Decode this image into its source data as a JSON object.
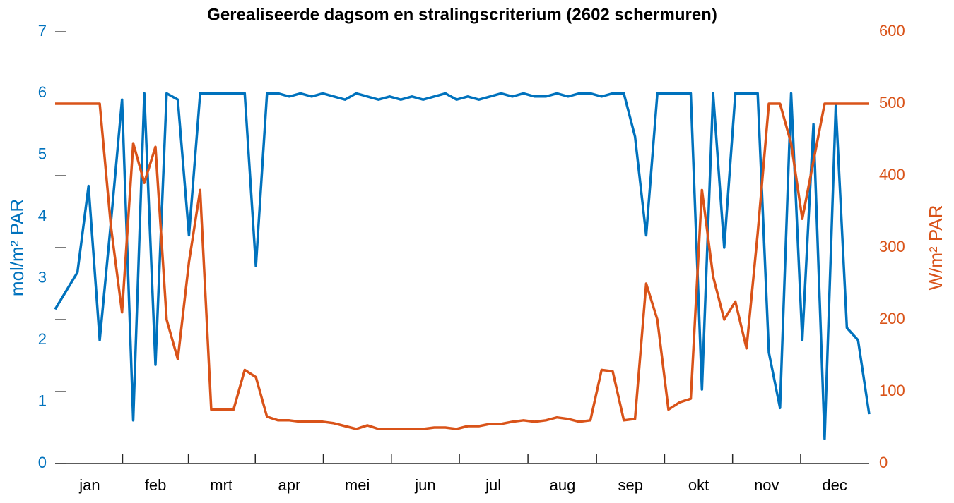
{
  "chart_data": {
    "type": "line",
    "title": "Gerealiseerde dagsom en stralingscriterium (2602 schermuren)",
    "ylabel": "mol/m² PAR",
    "y2label": "W/m² PAR",
    "xlim": [
      0,
      365
    ],
    "xticks": [
      {
        "value": 15.5,
        "label": "jan"
      },
      {
        "value": 45,
        "label": "feb"
      },
      {
        "value": 74.5,
        "label": "mrt"
      },
      {
        "value": 105,
        "label": "apr"
      },
      {
        "value": 135.5,
        "label": "mei"
      },
      {
        "value": 166,
        "label": "jun"
      },
      {
        "value": 196.5,
        "label": "jul"
      },
      {
        "value": 227.5,
        "label": "aug"
      },
      {
        "value": 258,
        "label": "sep"
      },
      {
        "value": 288.5,
        "label": "okt"
      },
      {
        "value": 319,
        "label": "nov"
      },
      {
        "value": 349.5,
        "label": "dec"
      }
    ],
    "ylim": [
      0,
      7
    ],
    "yticks": [
      0,
      1,
      2,
      3,
      4,
      5,
      6,
      7
    ],
    "y2lim": [
      0,
      600
    ],
    "y2ticks": [
      0,
      100,
      200,
      300,
      400,
      500,
      600
    ],
    "x": [
      0,
      5,
      10,
      15,
      20,
      25,
      30,
      35,
      40,
      45,
      50,
      55,
      60,
      65,
      70,
      75,
      80,
      85,
      90,
      95,
      100,
      105,
      110,
      115,
      120,
      125,
      130,
      135,
      140,
      145,
      150,
      155,
      160,
      165,
      170,
      175,
      180,
      185,
      190,
      195,
      200,
      205,
      210,
      215,
      220,
      225,
      230,
      235,
      240,
      245,
      250,
      255,
      260,
      265,
      270,
      275,
      280,
      285,
      290,
      295,
      300,
      305,
      310,
      315,
      320,
      325,
      330,
      335,
      340,
      345,
      350,
      355,
      360,
      365
    ],
    "series": [
      {
        "name": "mol/m² PAR",
        "color": "#0072BD",
        "values": [
          2.5,
          2.8,
          3.1,
          4.5,
          2.0,
          3.9,
          5.9,
          0.7,
          6.0,
          1.6,
          6.0,
          5.9,
          3.7,
          6.0,
          6.0,
          6.0,
          6.0,
          6.0,
          3.2,
          6.0,
          6.0,
          5.95,
          6.0,
          5.95,
          6.0,
          5.95,
          5.9,
          6.0,
          5.95,
          5.9,
          5.95,
          5.9,
          5.95,
          5.9,
          5.95,
          6.0,
          5.9,
          5.95,
          5.9,
          5.95,
          6.0,
          5.95,
          6.0,
          5.95,
          5.95,
          6.0,
          5.95,
          6.0,
          6.0,
          5.95,
          6.0,
          6.0,
          5.3,
          3.7,
          6.0,
          6.0,
          6.0,
          6.0,
          1.2,
          6.0,
          3.5,
          6.0,
          6.0,
          6.0,
          1.8,
          0.9,
          6.0,
          2.0,
          5.5,
          0.4,
          5.8,
          2.2,
          2.0,
          0.8
        ]
      },
      {
        "name": "W/m² PAR",
        "color": "#D95319",
        "axis": "y2",
        "values": [
          500,
          500,
          500,
          500,
          500,
          330,
          210,
          445,
          390,
          440,
          200,
          145,
          280,
          380,
          75,
          75,
          75,
          130,
          120,
          65,
          60,
          60,
          58,
          58,
          58,
          56,
          52,
          48,
          53,
          48,
          48,
          48,
          48,
          48,
          50,
          50,
          48,
          52,
          52,
          55,
          55,
          58,
          60,
          58,
          60,
          64,
          62,
          58,
          60,
          130,
          128,
          60,
          62,
          250,
          200,
          75,
          85,
          90,
          380,
          260,
          200,
          225,
          160,
          320,
          500,
          500,
          445,
          340,
          420,
          500,
          500,
          500,
          500,
          500
        ]
      }
    ]
  }
}
